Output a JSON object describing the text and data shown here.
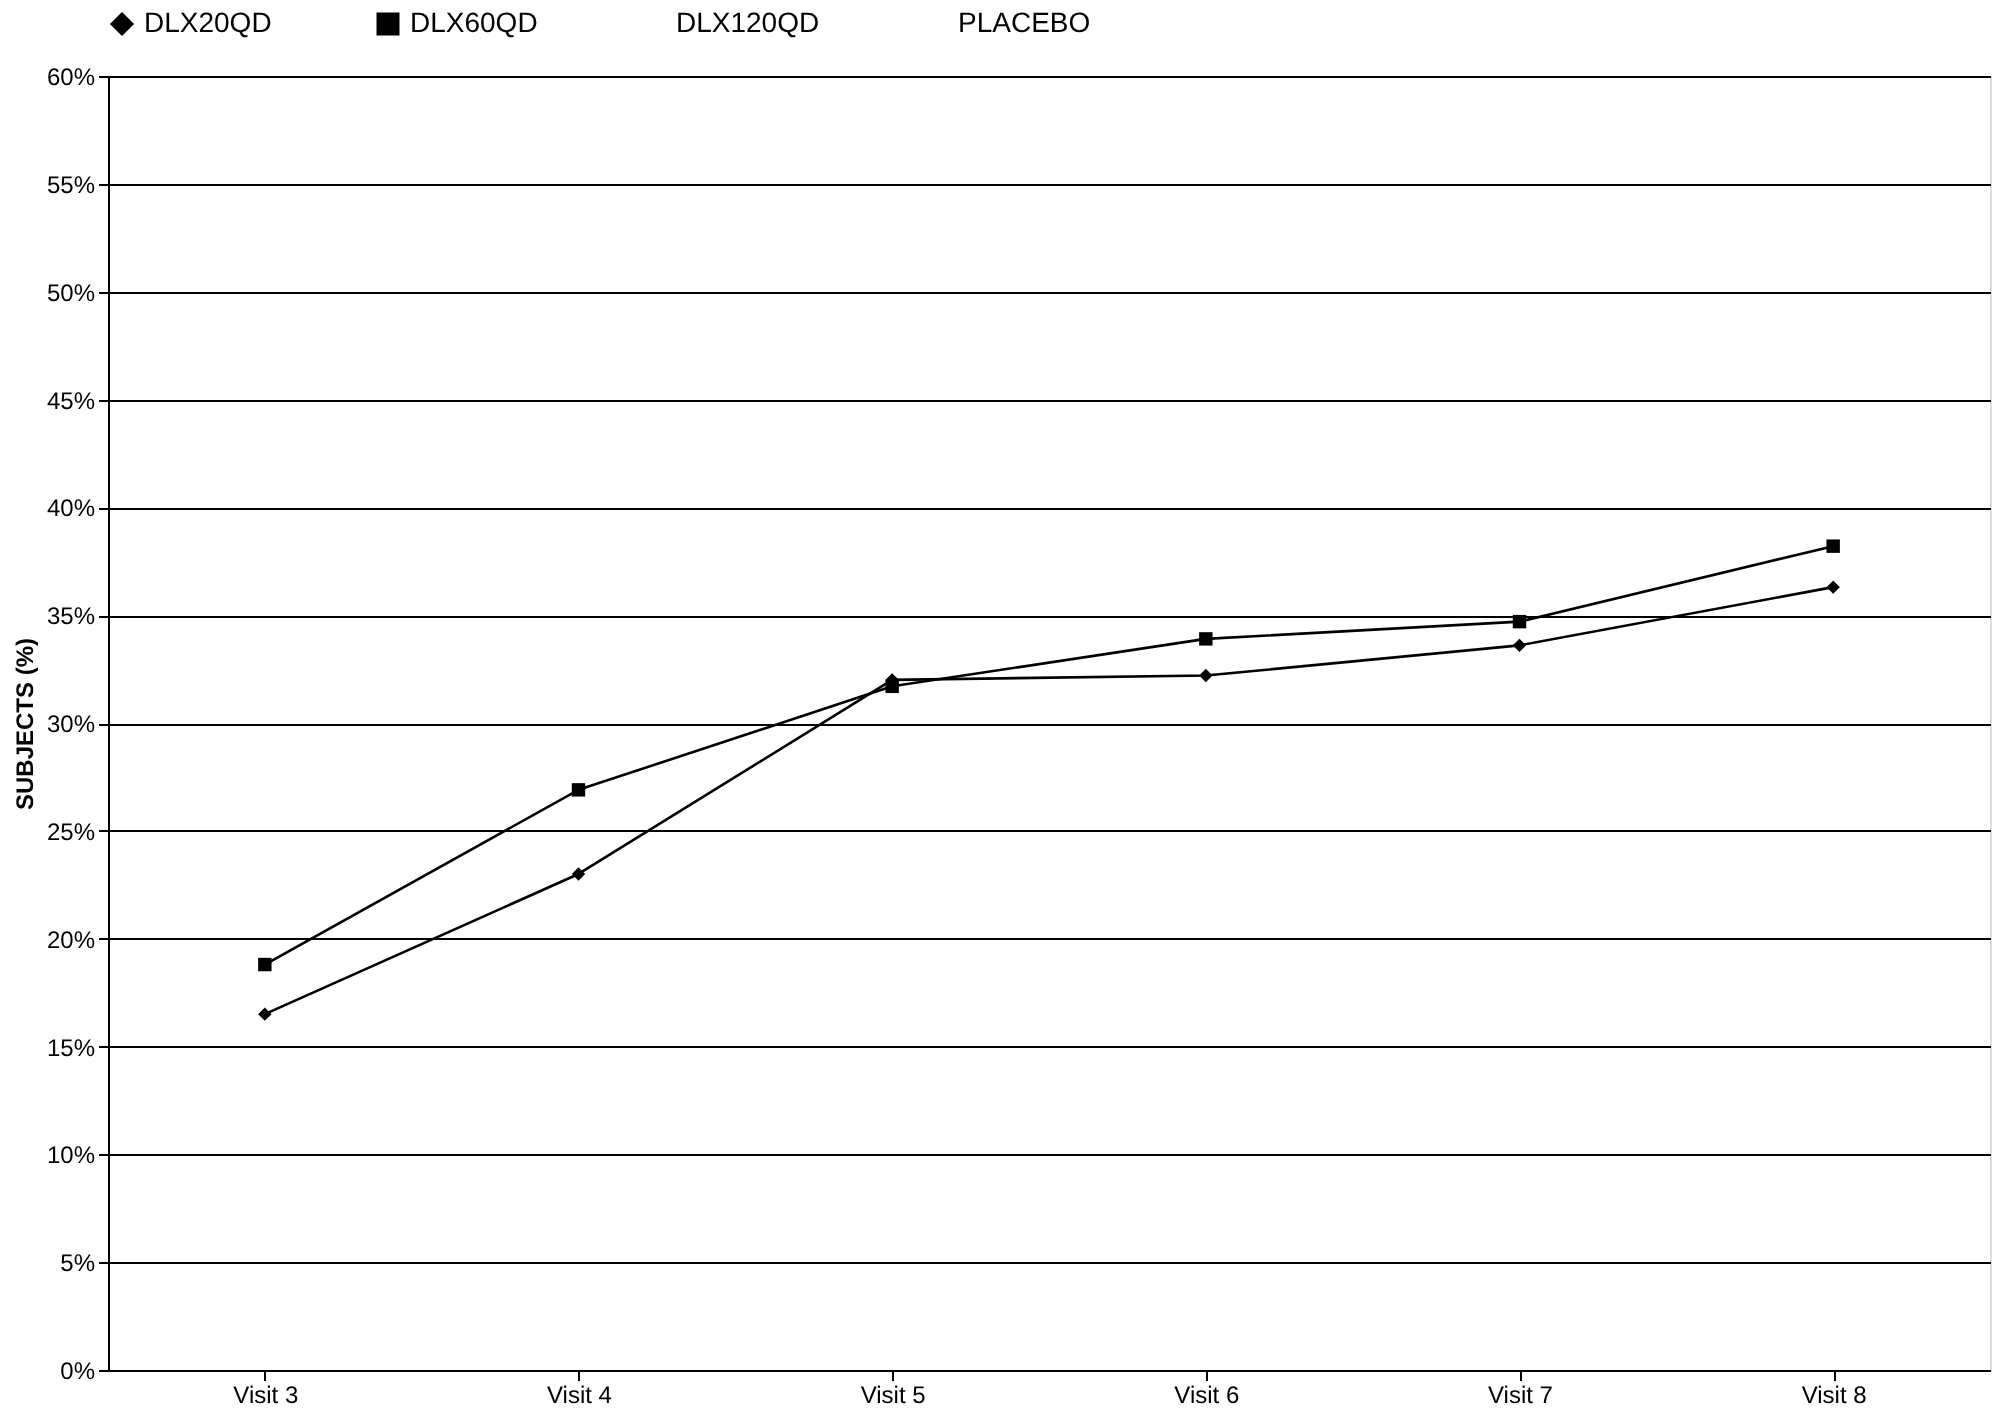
{
  "chart_data": {
    "type": "line",
    "ylabel": "SUBJECTS (%)",
    "categories": [
      "Visit 3",
      "Visit 4",
      "Visit 5",
      "Visit 6",
      "Visit 7",
      "Visit 8"
    ],
    "series": [
      {
        "name": "DLX20QD",
        "color": "#000000",
        "marker": "diamond",
        "values": [
          16.5,
          23.0,
          32.0,
          32.2,
          33.6,
          36.3
        ]
      },
      {
        "name": "DLX60QD",
        "color": "#000000",
        "marker": "square",
        "values": [
          18.8,
          26.9,
          31.7,
          33.9,
          34.7,
          38.2
        ]
      },
      {
        "name": "DLX120QD",
        "marker": "none",
        "values": [
          null,
          null,
          null,
          null,
          null,
          null
        ]
      },
      {
        "name": "PLACEBO",
        "marker": "none",
        "values": [
          null,
          null,
          null,
          null,
          null,
          null
        ]
      }
    ],
    "ylim": [
      0,
      60
    ],
    "yticks": [
      {
        "value": 0,
        "label": "0%"
      },
      {
        "value": 5,
        "label": "5%"
      },
      {
        "value": 10,
        "label": "10%"
      },
      {
        "value": 15,
        "label": "15%"
      },
      {
        "value": 20,
        "label": "20%"
      },
      {
        "value": 25,
        "label": "25%"
      },
      {
        "value": 30,
        "label": "30%"
      },
      {
        "value": 35,
        "label": "35%"
      },
      {
        "value": 40,
        "label": "40%"
      },
      {
        "value": 45,
        "label": "45%"
      },
      {
        "value": 50,
        "label": "50%"
      },
      {
        "value": 55,
        "label": "55%"
      },
      {
        "value": 60,
        "label": "60%"
      }
    ],
    "grid": "y",
    "legend": "top",
    "line_style": "solid"
  }
}
